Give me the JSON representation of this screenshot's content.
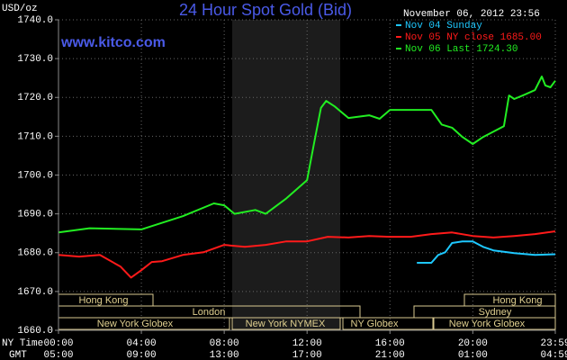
{
  "chart_data": {
    "type": "line",
    "title": "24 Hour Spot Gold (Bid)",
    "subtitle": "www.kitco.com",
    "date": "November 06, 2012 23:56",
    "y_label": "USD/oz",
    "x_label": "NY Time",
    "x2_label": "GMT",
    "xlim": [
      0,
      23.983
    ],
    "xticks": [
      {
        "value": 0,
        "label": "00:00"
      },
      {
        "value": 4,
        "label": "04:00"
      },
      {
        "value": 8,
        "label": "08:00"
      },
      {
        "value": 12,
        "label": "12:00"
      },
      {
        "value": 16,
        "label": "16:00"
      },
      {
        "value": 20,
        "label": "20:00"
      },
      {
        "value": 23.983,
        "label": "23:59"
      }
    ],
    "gmt_ticklabels": [
      "05:00",
      "09:00",
      "13:00",
      "17:00",
      "21:00",
      "01:00",
      "04:59"
    ],
    "ylim": [
      1660,
      1740
    ],
    "yticks": [
      {
        "value": 1660,
        "label": "1660.0"
      },
      {
        "value": 1670,
        "label": "1670.0"
      },
      {
        "value": 1680,
        "label": "1680.0"
      },
      {
        "value": 1690,
        "label": "1690.0"
      },
      {
        "value": 1700,
        "label": "1700.0"
      },
      {
        "value": 1710,
        "label": "1710.0"
      },
      {
        "value": 1720,
        "label": "1720.0"
      },
      {
        "value": 1730,
        "label": "1730.0"
      },
      {
        "value": 1740,
        "label": "1740.0"
      }
    ],
    "grid": true,
    "legend": "upper right",
    "sessions": [
      "Hong Kong",
      "Hong Kong",
      "London",
      "Sydney",
      "New York Globex",
      "New York NYMEX",
      "NY Globex",
      "New York Globex"
    ],
    "series": [
      {
        "name": "Nov 04 Sunday",
        "color": "#1ec8ff",
        "x": [
          17.3,
          18,
          18.33,
          18.67,
          19,
          19.5,
          20,
          20.5,
          21,
          22,
          23,
          23.983
        ],
        "values": [
          1677.4,
          1677.4,
          1679.4,
          1680.1,
          1682.5,
          1682.9,
          1682.9,
          1681.5,
          1680.6,
          1679.9,
          1679.4,
          1679.6
        ]
      },
      {
        "name": "Nov 05 NY close 1685.00",
        "color": "#ff1a1a",
        "x": [
          0,
          1,
          2,
          3,
          3.5,
          4,
          4.5,
          5,
          6,
          7,
          8,
          9,
          10,
          11,
          12,
          13,
          14,
          15,
          16,
          17,
          18,
          19,
          20,
          21,
          22,
          23,
          23.983
        ],
        "values": [
          1679.4,
          1679,
          1679.4,
          1676.4,
          1673.6,
          1675.5,
          1677.6,
          1677.8,
          1679.4,
          1680.1,
          1682,
          1681.5,
          1682,
          1682.9,
          1682.9,
          1684.1,
          1683.9,
          1684.3,
          1684.1,
          1684.1,
          1684.8,
          1685.2,
          1684.3,
          1683.9,
          1684.3,
          1684.8,
          1685.5
        ]
      },
      {
        "name": "Nov 06 Last 1724.30",
        "color": "#22ee22",
        "x": [
          0,
          1.5,
          4,
          6,
          7.5,
          8,
          8.5,
          9.5,
          10,
          11,
          11.75,
          12,
          12.33,
          12.67,
          12.92,
          13.33,
          14,
          15,
          15.5,
          16,
          17,
          18,
          18.5,
          19,
          19.5,
          20,
          20.5,
          21,
          21.5,
          21.75,
          22,
          22.5,
          23,
          23.33,
          23.5,
          23.75,
          23.983
        ],
        "values": [
          1685.2,
          1686.3,
          1686,
          1689.4,
          1692.7,
          1692.2,
          1690,
          1691,
          1690,
          1694,
          1697.5,
          1698.7,
          1708,
          1717.3,
          1719.1,
          1717.7,
          1714.7,
          1715.4,
          1714.5,
          1716.8,
          1716.8,
          1716.8,
          1713,
          1712.2,
          1709.8,
          1708,
          1709.8,
          1711.2,
          1712.6,
          1720.5,
          1719.6,
          1720.7,
          1721.9,
          1725.4,
          1723.1,
          1722.6,
          1724.3
        ]
      }
    ]
  }
}
